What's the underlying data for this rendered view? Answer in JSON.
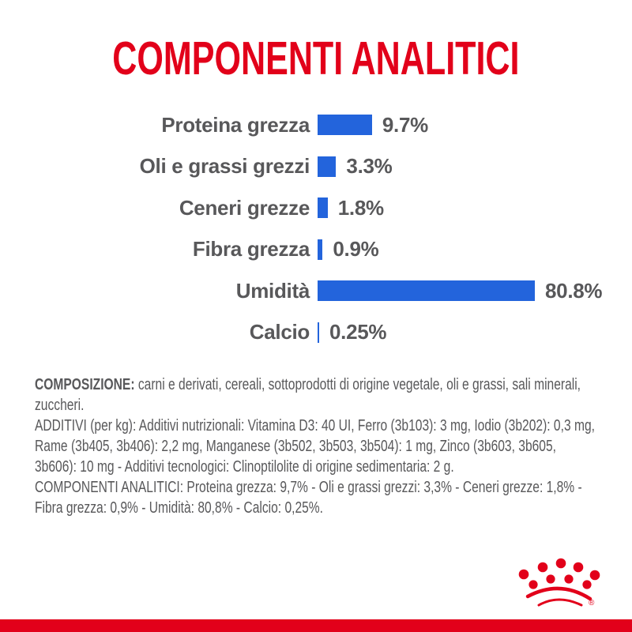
{
  "title": "COMPONENTI ANALITICI",
  "colors": {
    "brand_red": "#E2001A",
    "bar_blue": "#2364DC",
    "text_gray": "#58585A"
  },
  "chart_data": {
    "type": "bar",
    "orientation": "horizontal",
    "title": "COMPONENTI ANALITICI",
    "categories": [
      "Proteina grezza",
      "Oli e grassi grezzi",
      "Ceneri grezze",
      "Fibra grezza",
      "Umidità",
      "Calcio"
    ],
    "values": [
      9.7,
      3.3,
      1.8,
      0.9,
      80.8,
      0.25
    ],
    "value_labels": [
      "9.7%",
      "3.3%",
      "1.8%",
      "0.9%",
      "80.8%",
      "0.25%"
    ],
    "bar_color": "#2364DC",
    "axes_visible": false,
    "grid": false,
    "legend": false
  },
  "body": {
    "composition_label": "COMPOSIZIONE:",
    "composition_text": "carni e derivati, cereali, sottoprodotti di origine vegetale, oli e grassi, sali minerali, zuccheri.",
    "additives_text": "ADDITIVI (per kg): Additivi nutrizionali: Vitamina D3: 40 UI, Ferro (3b103): 3 mg, Iodio (3b202): 0,3 mg, Rame (3b405, 3b406): 2,2 mg, Manganese (3b502, 3b503, 3b504): 1 mg, Zinco (3b603, 3b605, 3b606): 10 mg - Additivi tecnologici: Clinoptilolite di origine sedimentaria: 2 g.",
    "analytical_text": "COMPONENTI ANALITICI: Proteina grezza: 9,7% - Oli e grassi grezzi: 3,3% - Ceneri grezze: 1,8% - Fibra grezza: 0,9% - Umidità: 80,8% - Calcio: 0,25%."
  },
  "logo": {
    "name": "royal-canin-crown",
    "registered_mark": "®"
  }
}
